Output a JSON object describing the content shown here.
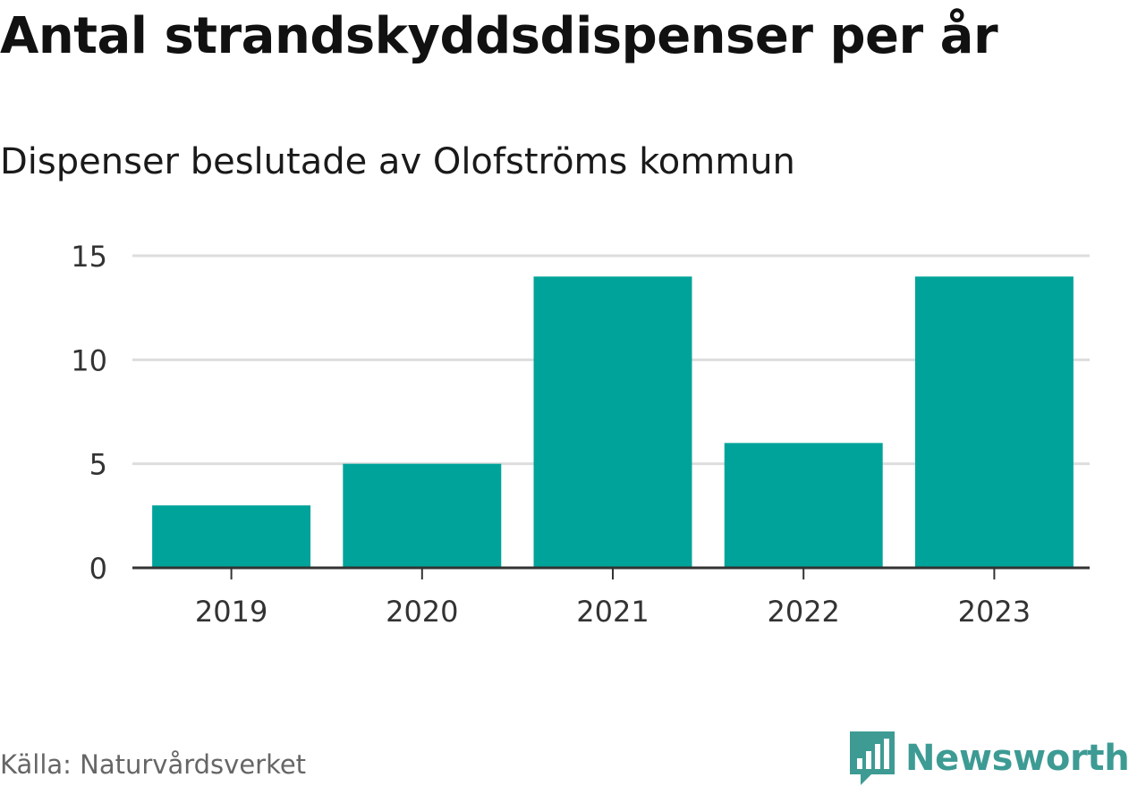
{
  "header": {
    "title": "Antal strandskyddsdispenser per år",
    "subtitle": "Dispenser beslutade av Olofströms kommun"
  },
  "footer": {
    "source": "Källa: Naturvårdsverket",
    "brand": "Newsworthy",
    "brand_icon": "bar-chart-speech-icon"
  },
  "colors": {
    "bar": "#00a39a",
    "grid": "#dddddd",
    "axis": "#333333",
    "brand": "#3d9b94"
  },
  "chart_data": {
    "type": "bar",
    "title": "Antal strandskyddsdispenser per år",
    "subtitle": "Dispenser beslutade av Olofströms kommun",
    "categories": [
      "2019",
      "2020",
      "2021",
      "2022",
      "2023"
    ],
    "values": [
      3,
      5,
      14,
      6,
      14
    ],
    "xlabel": "",
    "ylabel": "",
    "ylim": [
      0,
      15
    ],
    "yticks": [
      0,
      5,
      10,
      15
    ],
    "grid": true,
    "legend": "none"
  }
}
